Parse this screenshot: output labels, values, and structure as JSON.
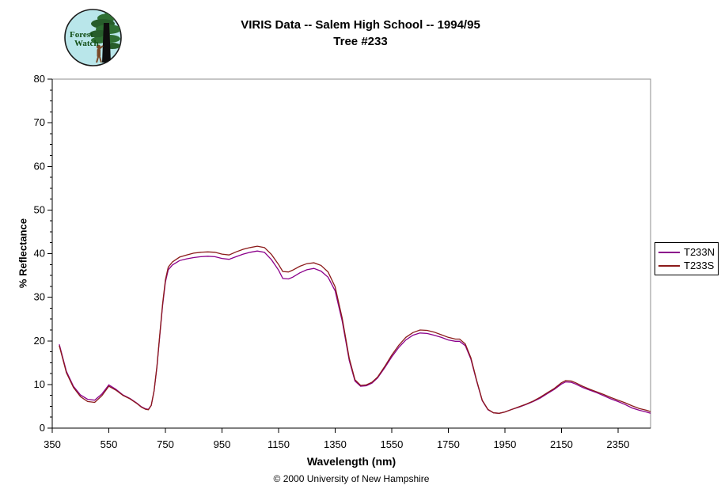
{
  "header": {
    "title_line1": "VIRIS Data -- Salem High School -- 1994/95",
    "title_line2": "Tree #233",
    "logo": {
      "text_line1": "Forest",
      "text_line2": "Watch"
    }
  },
  "footer": {
    "copyright": "© 2000 University of New Hampshire"
  },
  "chart_data": {
    "type": "line",
    "title": "VIRIS Data -- Salem High School -- 1994/95 — Tree #233",
    "xlabel": "Wavelength (nm)",
    "ylabel": "% Reflectance",
    "xlim": [
      350,
      2465
    ],
    "ylim": [
      0,
      80
    ],
    "x_ticks": [
      350,
      550,
      750,
      950,
      1150,
      1350,
      1550,
      1750,
      1950,
      2150,
      2350
    ],
    "y_ticks": [
      0,
      10,
      20,
      30,
      40,
      50,
      60,
      70,
      80
    ],
    "y_minor_step": 2.5,
    "grid": false,
    "legend_position": "right-outside",
    "plot_border_color": "#8c8c8c",
    "x": [
      375,
      400,
      425,
      450,
      475,
      500,
      525,
      550,
      575,
      600,
      625,
      650,
      665,
      680,
      690,
      700,
      710,
      720,
      730,
      740,
      750,
      760,
      775,
      800,
      825,
      850,
      875,
      900,
      925,
      950,
      975,
      1000,
      1025,
      1050,
      1075,
      1100,
      1125,
      1150,
      1165,
      1185,
      1200,
      1225,
      1250,
      1275,
      1300,
      1325,
      1350,
      1375,
      1400,
      1420,
      1440,
      1460,
      1480,
      1500,
      1525,
      1550,
      1575,
      1600,
      1625,
      1650,
      1675,
      1700,
      1725,
      1750,
      1775,
      1790,
      1810,
      1830,
      1850,
      1870,
      1890,
      1910,
      1930,
      1950,
      1975,
      2000,
      2025,
      2050,
      2075,
      2100,
      2125,
      2150,
      2165,
      2185,
      2200,
      2225,
      2250,
      2275,
      2300,
      2325,
      2350,
      2375,
      2400,
      2425,
      2450,
      2465
    ],
    "series": [
      {
        "name": "T233N",
        "color": "#8B008B",
        "values": [
          19.2,
          13.0,
          9.6,
          7.6,
          6.6,
          6.4,
          7.8,
          9.9,
          8.9,
          7.6,
          6.8,
          5.7,
          4.9,
          4.4,
          4.3,
          5.2,
          8.5,
          14.0,
          21.0,
          28.0,
          33.5,
          36.3,
          37.4,
          38.4,
          38.8,
          39.1,
          39.3,
          39.4,
          39.3,
          38.9,
          38.7,
          39.3,
          39.9,
          40.3,
          40.6,
          40.3,
          38.6,
          36.2,
          34.3,
          34.2,
          34.6,
          35.6,
          36.3,
          36.6,
          36.0,
          34.6,
          31.5,
          24.5,
          15.5,
          10.8,
          9.6,
          9.7,
          10.3,
          11.5,
          13.8,
          16.3,
          18.5,
          20.2,
          21.3,
          21.8,
          21.7,
          21.3,
          20.8,
          20.2,
          19.9,
          19.9,
          18.9,
          15.8,
          10.8,
          6.3,
          4.2,
          3.5,
          3.4,
          3.7,
          4.3,
          4.8,
          5.4,
          6.1,
          6.9,
          7.9,
          8.9,
          10.1,
          10.6,
          10.5,
          10.1,
          9.3,
          8.7,
          8.1,
          7.4,
          6.7,
          6.1,
          5.4,
          4.6,
          4.1,
          3.7,
          3.4
        ]
      },
      {
        "name": "T233S",
        "color": "#8B1A1A",
        "values": [
          18.9,
          12.7,
          9.3,
          7.2,
          6.1,
          5.9,
          7.4,
          9.6,
          8.7,
          7.5,
          6.7,
          5.6,
          4.8,
          4.3,
          4.2,
          5.2,
          8.6,
          14.2,
          21.3,
          28.4,
          34.0,
          36.9,
          38.1,
          39.2,
          39.7,
          40.1,
          40.3,
          40.4,
          40.3,
          39.9,
          39.7,
          40.4,
          41.0,
          41.4,
          41.7,
          41.4,
          39.8,
          37.5,
          35.9,
          35.8,
          36.2,
          37.1,
          37.7,
          37.9,
          37.3,
          35.8,
          32.4,
          25.2,
          16.0,
          11.1,
          9.8,
          9.9,
          10.5,
          11.7,
          14.1,
          16.7,
          19.0,
          20.8,
          21.9,
          22.5,
          22.4,
          22.0,
          21.4,
          20.8,
          20.4,
          20.4,
          19.3,
          16.1,
          11.0,
          6.4,
          4.3,
          3.5,
          3.4,
          3.7,
          4.3,
          4.9,
          5.5,
          6.2,
          7.1,
          8.1,
          9.1,
          10.4,
          10.9,
          10.8,
          10.4,
          9.6,
          8.9,
          8.3,
          7.7,
          7.0,
          6.4,
          5.8,
          5.1,
          4.5,
          4.1,
          3.8
        ]
      }
    ]
  }
}
